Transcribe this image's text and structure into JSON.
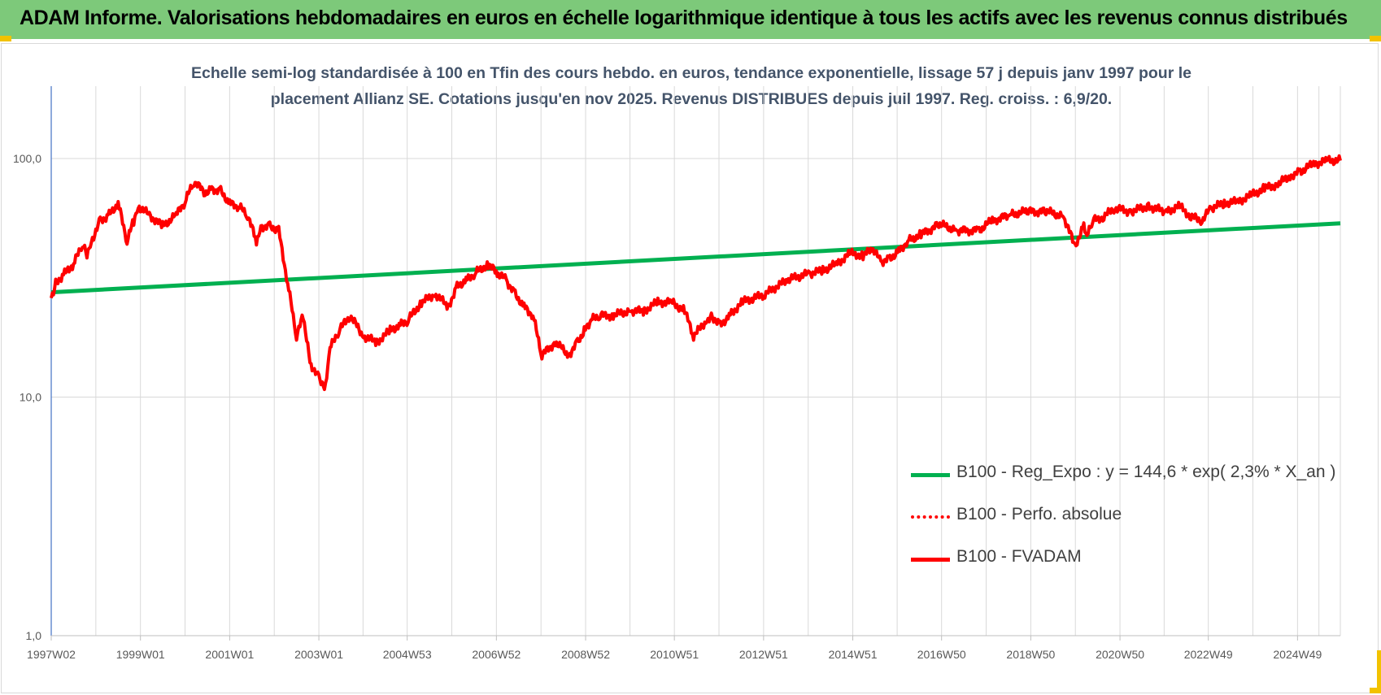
{
  "header": {
    "title": "ADAM Informe. Valorisations hebdomadaires en euros en échelle logarithmique identique à tous les actifs avec les revenus connus distribués"
  },
  "chart_data": {
    "type": "line",
    "title_lines": [
      "Echelle semi-log standardisée à 100 en Tfin des cours hebdo. en euros, tendance exponentielle, lissage 57 j depuis janv 1997 pour le",
      "placement Allianz SE. Cotations jusqu'en nov 2025. Revenus DISTRIBUES depuis juil 1997. Reg. croiss. : 6,9/20."
    ],
    "y_scale": "log",
    "ylim": [
      1,
      200
    ],
    "y_ticks": [
      {
        "value": 1,
        "label": "1,0"
      },
      {
        "value": 10,
        "label": "10,0"
      },
      {
        "value": 100,
        "label": "100,0"
      }
    ],
    "xlim": [
      1997.0,
      2025.9
    ],
    "x_ticks": [
      {
        "value": 1997.0,
        "label": "1997W02"
      },
      {
        "value": 1999.0,
        "label": "1999W01"
      },
      {
        "value": 2001.0,
        "label": "2001W01"
      },
      {
        "value": 2003.0,
        "label": "2003W01"
      },
      {
        "value": 2004.98,
        "label": "2004W53"
      },
      {
        "value": 2006.98,
        "label": "2006W52"
      },
      {
        "value": 2008.98,
        "label": "2008W52"
      },
      {
        "value": 2010.97,
        "label": "2010W51"
      },
      {
        "value": 2012.97,
        "label": "2012W51"
      },
      {
        "value": 2014.97,
        "label": "2014W51"
      },
      {
        "value": 2016.96,
        "label": "2016W50"
      },
      {
        "value": 2018.96,
        "label": "2018W50"
      },
      {
        "value": 2020.96,
        "label": "2020W50"
      },
      {
        "value": 2022.94,
        "label": "2022W49"
      },
      {
        "value": 2024.94,
        "label": "2024W49"
      }
    ],
    "grid": true,
    "legend_position": "bottom-right",
    "series": [
      {
        "name": "B100 - Reg_Expo : y = 144,6 * exp( 2,3% *  X_an )",
        "color": "#00b050",
        "style": "solid",
        "x": [
          1997.0,
          2025.9
        ],
        "y": [
          27.5,
          53.5
        ]
      },
      {
        "name": "B100 - Perfo. absolue",
        "color": "#ff0000",
        "style": "dotted",
        "x": [],
        "y": []
      },
      {
        "name": "B100 - FVADAM",
        "color": "#ff0000",
        "style": "solid",
        "x": [
          1997.0,
          1997.1,
          1997.3,
          1997.5,
          1997.7,
          1997.8,
          1997.9,
          1998.1,
          1998.3,
          1998.5,
          1998.7,
          1998.85,
          1998.95,
          1999.2,
          1999.5,
          1999.8,
          2000.0,
          2000.2,
          2000.45,
          2000.6,
          2000.8,
          2001.0,
          2001.2,
          2001.4,
          2001.6,
          2001.7,
          2001.9,
          2002.1,
          2002.3,
          2002.5,
          2002.65,
          2002.8,
          2003.0,
          2003.15,
          2003.25,
          2003.45,
          2003.7,
          2004.0,
          2004.3,
          2004.6,
          2004.8,
          2005.0,
          2005.3,
          2005.6,
          2005.9,
          2006.1,
          2006.3,
          2006.5,
          2006.8,
          2007.0,
          2007.2,
          2007.4,
          2007.6,
          2007.8,
          2008.0,
          2008.3,
          2008.6,
          2008.8,
          2008.95,
          2009.1,
          2009.3,
          2009.6,
          2010.0,
          2010.3,
          2010.6,
          2010.9,
          2011.2,
          2011.4,
          2011.7,
          2011.8,
          2012.0,
          2012.2,
          2012.5,
          2013.0,
          2013.5,
          2014.0,
          2014.3,
          2014.6,
          2014.9,
          2015.2,
          2015.4,
          2015.6,
          2015.8,
          2016.0,
          2016.2,
          2016.5,
          2016.9,
          2017.3,
          2017.8,
          2018.1,
          2018.5,
          2018.9,
          2019.3,
          2019.7,
          2019.95,
          2020.15,
          2020.22,
          2020.35,
          2020.6,
          2020.85,
          2021.2,
          2021.6,
          2022.0,
          2022.3,
          2022.55,
          2022.8,
          2023.0,
          2023.3,
          2023.6,
          2023.9,
          2024.2,
          2024.5,
          2024.8,
          2025.0,
          2025.3,
          2025.6,
          2025.9
        ],
        "y": [
          26,
          30,
          33,
          36,
          44,
          40,
          45,
          55,
          58,
          65,
          45,
          55,
          63,
          58,
          52,
          58,
          66,
          80,
          72,
          75,
          73,
          65,
          63,
          58,
          45,
          52,
          52,
          50,
          30,
          18,
          22,
          14,
          12,
          11,
          16,
          19,
          22,
          18,
          17,
          19,
          20,
          21,
          25,
          27,
          24,
          29,
          31,
          33,
          36,
          33,
          31,
          27,
          24,
          22,
          15,
          17,
          15,
          17,
          19,
          21,
          22,
          22,
          23,
          23,
          25,
          25,
          23,
          18,
          21,
          22,
          20,
          22,
          25,
          27,
          31,
          33,
          34,
          36,
          40,
          39,
          42,
          37,
          38,
          41,
          45,
          48,
          53,
          50,
          50,
          55,
          58,
          60,
          60,
          57,
          43,
          52,
          47,
          55,
          57,
          62,
          60,
          63,
          60,
          63,
          57,
          55,
          62,
          65,
          66,
          70,
          75,
          78,
          85,
          88,
          95,
          98,
          98
        ]
      }
    ]
  }
}
